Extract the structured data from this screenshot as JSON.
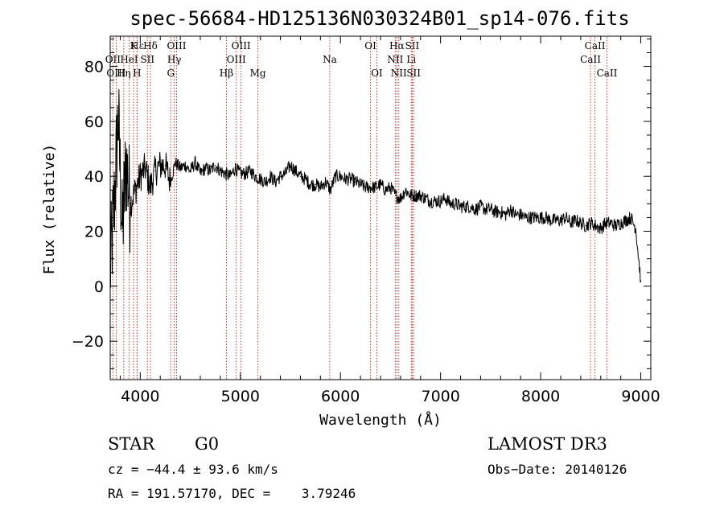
{
  "chart_data": {
    "type": "line",
    "title": "spec-56684-HD125136N030324B01_sp14-076.fits",
    "xlabel": "Wavelength (Å)",
    "ylabel": "Flux (relative)",
    "xlim": [
      3700,
      9100
    ],
    "ylim": [
      -34,
      91
    ],
    "xticks": [
      4000,
      5000,
      6000,
      7000,
      8000,
      9000
    ],
    "yticks": [
      -20,
      0,
      20,
      40,
      60,
      80
    ],
    "series": [
      {
        "name": "flux",
        "color": "#000000",
        "x": [
          3700,
          3740,
          3780,
          3820,
          3860,
          3900,
          3950,
          4000,
          4050,
          4100,
          4150,
          4200,
          4250,
          4300,
          4350,
          4400,
          4450,
          4500,
          4550,
          4600,
          4650,
          4700,
          4750,
          4800,
          4850,
          4900,
          4950,
          5000,
          5050,
          5100,
          5150,
          5200,
          5250,
          5300,
          5350,
          5400,
          5450,
          5500,
          5550,
          5600,
          5650,
          5700,
          5750,
          5800,
          5850,
          5900,
          5950,
          6000,
          6050,
          6100,
          6150,
          6200,
          6250,
          6300,
          6350,
          6400,
          6450,
          6500,
          6550,
          6600,
          6650,
          6700,
          6750,
          6800,
          6850,
          6900,
          6950,
          7000,
          7050,
          7100,
          7150,
          7200,
          7250,
          7300,
          7350,
          7400,
          7450,
          7500,
          7550,
          7600,
          7650,
          7700,
          7750,
          7800,
          7850,
          7900,
          7950,
          8000,
          8050,
          8100,
          8150,
          8200,
          8250,
          8300,
          8350,
          8400,
          8450,
          8500,
          8550,
          8600,
          8650,
          8700,
          8750,
          8800,
          8850,
          8900,
          8950,
          9000
        ],
        "y": [
          5,
          30,
          62,
          20,
          45,
          30,
          35,
          40,
          43,
          36,
          42,
          44,
          44,
          38,
          45,
          43,
          44,
          42,
          45,
          41,
          43,
          42,
          44,
          42,
          41,
          40,
          43,
          41,
          41,
          42,
          40,
          39,
          38,
          40,
          38,
          40,
          41,
          44,
          42,
          40,
          39,
          37,
          37,
          36,
          38,
          35,
          40,
          40,
          39,
          39,
          38,
          37,
          36,
          36,
          36,
          37,
          35,
          36,
          33,
          32,
          35,
          33,
          33,
          33,
          32,
          31,
          31,
          31,
          32,
          30,
          30,
          29,
          29,
          29,
          28,
          29,
          28,
          28,
          27,
          27,
          26,
          28,
          26,
          26,
          25,
          25,
          25,
          25,
          25,
          24,
          24,
          24,
          25,
          23,
          24,
          23,
          22,
          23,
          22,
          21,
          23,
          23,
          22,
          23,
          24,
          25,
          21,
          2
        ]
      }
    ],
    "lines": [
      {
        "name": "Hε",
        "x": 3970,
        "row": 0
      },
      {
        "name": "K",
        "x": 3934,
        "row": 0
      },
      {
        "name": "Hδ",
        "x": 4102,
        "row": 0
      },
      {
        "name": "OIII",
        "x": 4363,
        "row": 0
      },
      {
        "name": "OIII",
        "x": 5007,
        "row": 0
      },
      {
        "name": "OI",
        "x": 6300,
        "row": 0
      },
      {
        "name": "Hα",
        "x": 6563,
        "row": 0
      },
      {
        "name": "SII",
        "x": 6717,
        "row": 0
      },
      {
        "name": "CaII",
        "x": 8542,
        "row": 0
      },
      {
        "name": "OII",
        "x": 3727,
        "row": 1
      },
      {
        "name": "HeI",
        "x": 3889,
        "row": 1
      },
      {
        "name": "SII",
        "x": 4072,
        "row": 1
      },
      {
        "name": "Hγ",
        "x": 4340,
        "row": 1
      },
      {
        "name": "OIII",
        "x": 4959,
        "row": 1
      },
      {
        "name": "Na",
        "x": 5893,
        "row": 1
      },
      {
        "name": "NII",
        "x": 6548,
        "row": 1
      },
      {
        "name": "Li",
        "x": 6708,
        "row": 1
      },
      {
        "name": "CaII",
        "x": 8498,
        "row": 1
      },
      {
        "name": "OIII",
        "x": 3760,
        "row": 2
      },
      {
        "name": "Hη",
        "x": 3835,
        "row": 2
      },
      {
        "name": "H",
        "x": 3968,
        "row": 2
      },
      {
        "name": "G",
        "x": 4305,
        "row": 2
      },
      {
        "name": "Hβ",
        "x": 4861,
        "row": 2
      },
      {
        "name": "Mg",
        "x": 5175,
        "row": 2
      },
      {
        "name": "OI",
        "x": 6364,
        "row": 2
      },
      {
        "name": "NII",
        "x": 6583,
        "row": 2
      },
      {
        "name": "SII",
        "x": 6731,
        "row": 2
      },
      {
        "name": "CaII",
        "x": 8662,
        "row": 2
      }
    ]
  },
  "info": {
    "class": "STAR",
    "subclass": "G0",
    "survey": "LAMOST DR3",
    "cz": "cz = −44.4 ± 93.6 km/s",
    "obs_date": "Obs−Date: 20140126",
    "radec": "RA = 191.57170, DEC =    3.79246"
  }
}
